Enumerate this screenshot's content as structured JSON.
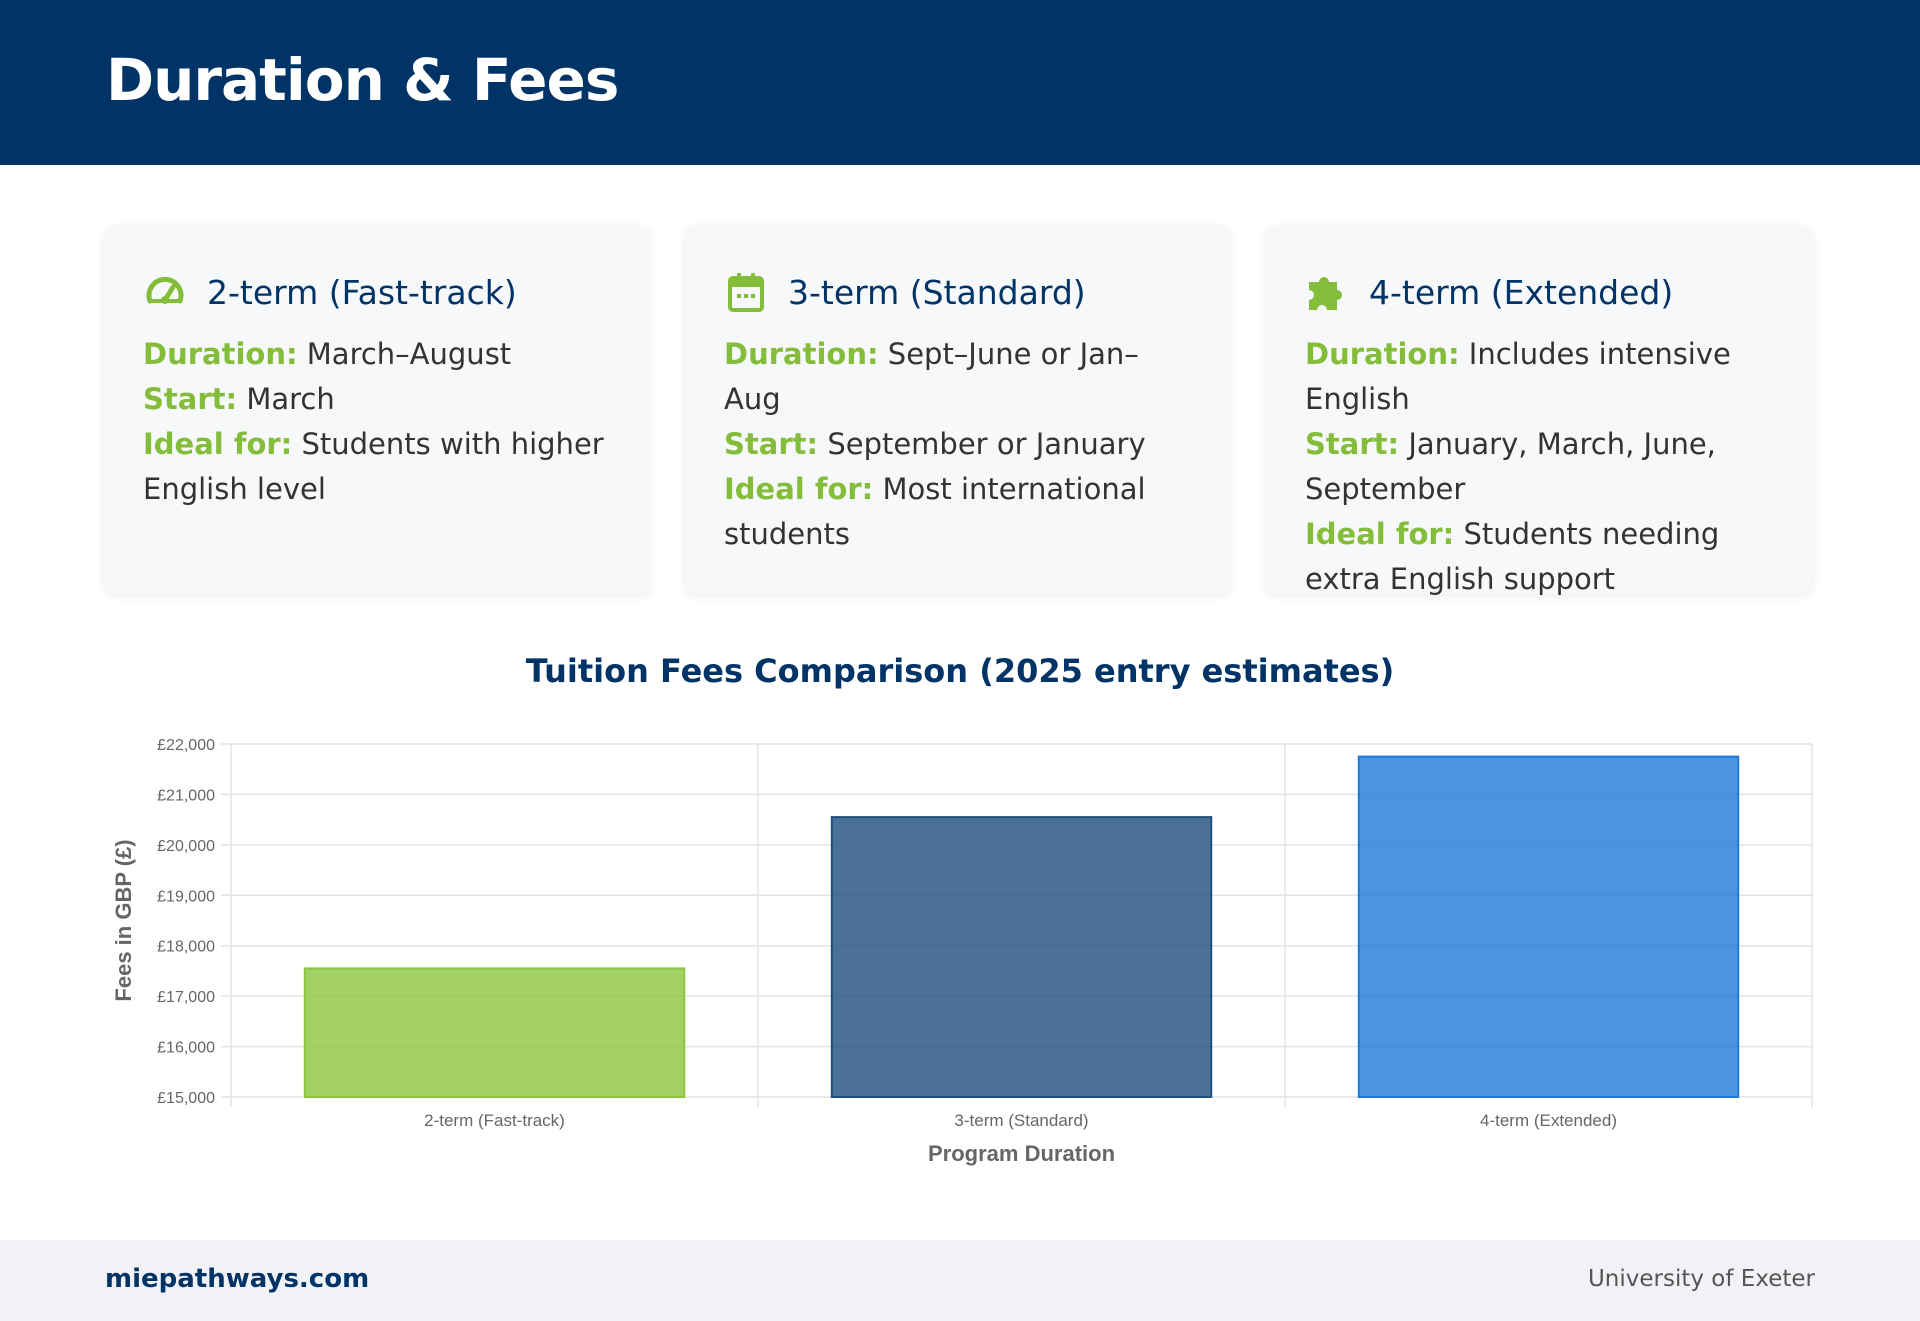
{
  "page": {
    "title": "Duration & Fees"
  },
  "cards": [
    {
      "icon": "speedometer-icon",
      "title": "2-term (Fast-track)",
      "duration_label": "Duration:",
      "duration": "March–August",
      "start_label": "Start:",
      "start": "March",
      "ideal_label": "Ideal for:",
      "ideal": "Students with higher English level"
    },
    {
      "icon": "calendar-icon",
      "title": "3-term (Standard)",
      "duration_label": "Duration:",
      "duration": "Sept–June or Jan–Aug",
      "start_label": "Start:",
      "start": "September or January",
      "ideal_label": "Ideal for:",
      "ideal": "Most international students"
    },
    {
      "icon": "puzzle-piece-icon",
      "title": "4-term (Extended)",
      "duration_label": "Duration:",
      "duration": "Includes intensive English",
      "start_label": "Start:",
      "start": "January, March, June, September",
      "ideal_label": "Ideal for:",
      "ideal": "Students needing extra English support"
    }
  ],
  "chart_data": {
    "type": "bar",
    "title": "Tuition Fees Comparison (2025 entry estimates)",
    "categories": [
      "2-term (Fast-track)",
      "3-term (Standard)",
      "4-term (Extended)"
    ],
    "values": [
      17550,
      20550,
      21750
    ],
    "colors": [
      "#8cc63f",
      "#1f4e7f",
      "#1e7ad8"
    ],
    "xlabel": "Program Duration",
    "ylabel": "Fees in GBP (£)",
    "ylim": [
      15000,
      22000
    ],
    "yticks": [
      "£15,000",
      "£16,000",
      "£17,000",
      "£18,000",
      "£19,000",
      "£20,000",
      "£21,000",
      "£22,000"
    ],
    "grid": true
  },
  "footer": {
    "site": "miepathways.com",
    "university": "University of Exeter"
  },
  "colors": {
    "header_bg": "#003366",
    "accent_green": "#84bd3a"
  }
}
